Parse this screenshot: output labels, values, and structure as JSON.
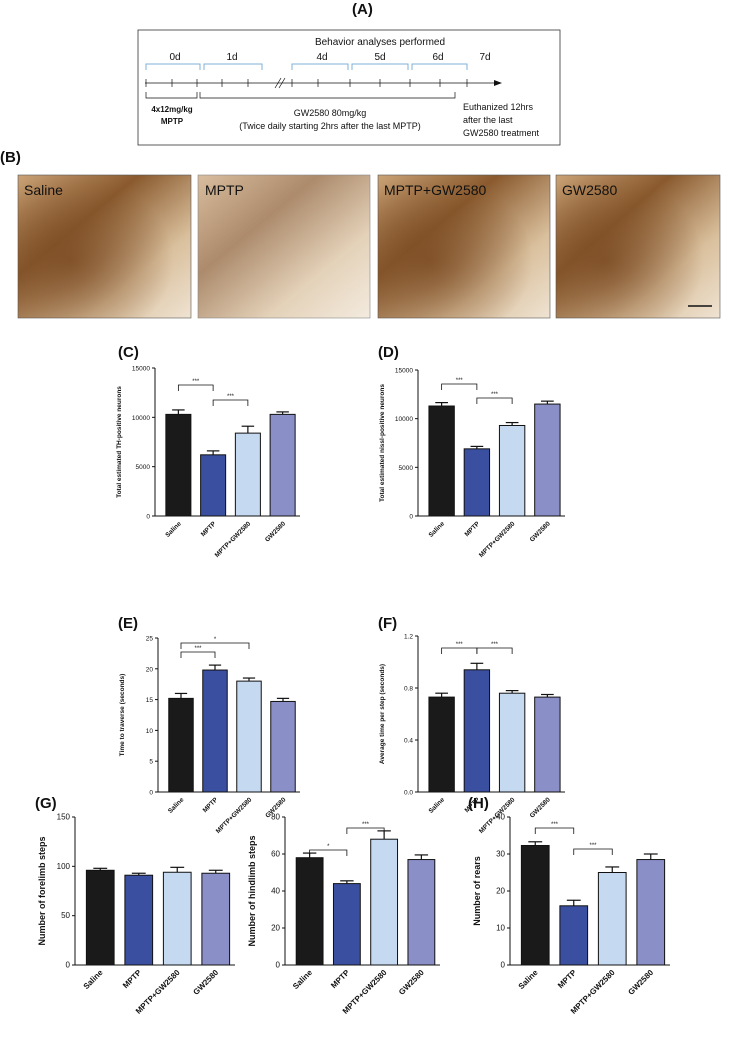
{
  "panel_labels": [
    "(A)",
    "(B)",
    "(C)",
    "(D)",
    "(E)",
    "(F)",
    "(G)",
    "(H)"
  ],
  "timeline": {
    "heading": "Behavior analyses performed",
    "days": [
      "0d",
      "1d",
      "4d",
      "5d",
      "6d",
      "7d"
    ],
    "mptp_dose": [
      "4x12mg/kg",
      "MPTP"
    ],
    "treatment": [
      "GW2580 80mg/kg",
      "(Twice daily starting 2hrs after the last MPTP)"
    ],
    "endpoint": [
      "Euthanized  12hrs",
      "after the last",
      "GW2580 treatment"
    ]
  },
  "micrographs": {
    "labels": [
      "Saline",
      "MPTP",
      "MPTP+GW2580",
      "GW2580"
    ]
  },
  "chart_data": [
    {
      "type": "bar",
      "categories": [
        "Saline",
        "MPTP",
        "MPTP+GW2580",
        "GW2580"
      ],
      "values": [
        10300,
        6200,
        8400,
        10300
      ],
      "errors": [
        450,
        400,
        700,
        250
      ],
      "colors": [
        "#1a1a1a",
        "#3a4fa0",
        "#c5d9f1",
        "#8b8fc8"
      ],
      "ylim": [
        0,
        15000
      ],
      "yticks": [
        0,
        5000,
        10000,
        15000
      ],
      "ylabel": "Total estimated TH-positive neurons",
      "annotations": [
        "***",
        "***"
      ]
    },
    {
      "type": "bar",
      "categories": [
        "Saline",
        "MPTP",
        "MPTP+GW2580",
        "GW2580"
      ],
      "values": [
        11300,
        6900,
        9300,
        11500
      ],
      "errors": [
        350,
        250,
        300,
        300
      ],
      "colors": [
        "#1a1a1a",
        "#3a4fa0",
        "#c5d9f1",
        "#8b8fc8"
      ],
      "ylim": [
        0,
        15000
      ],
      "yticks": [
        0,
        5000,
        10000,
        15000
      ],
      "ylabel": "Total estimated nissl-positive neurons",
      "annotations": [
        "***",
        "***"
      ]
    },
    {
      "type": "bar",
      "categories": [
        "Saline",
        "MPTP",
        "MPTP+GW2580",
        "GW2580"
      ],
      "values": [
        15.2,
        19.8,
        18.0,
        14.7
      ],
      "errors": [
        0.8,
        0.8,
        0.5,
        0.5
      ],
      "colors": [
        "#1a1a1a",
        "#3a4fa0",
        "#c5d9f1",
        "#8b8fc8"
      ],
      "ylim": [
        0,
        25
      ],
      "yticks": [
        0,
        5,
        10,
        15,
        20,
        25
      ],
      "ylabel": "Time to traverse (seconds)",
      "annotations": [
        "*",
        "***"
      ]
    },
    {
      "type": "bar",
      "categories": [
        "Saline",
        "MPTP",
        "MPTP+GW2580",
        "GW2580"
      ],
      "values": [
        0.73,
        0.94,
        0.76,
        0.73
      ],
      "errors": [
        0.03,
        0.05,
        0.02,
        0.02
      ],
      "colors": [
        "#1a1a1a",
        "#3a4fa0",
        "#c5d9f1",
        "#8b8fc8"
      ],
      "ylim": [
        0,
        1.2
      ],
      "yticks": [
        {
          "value": 0,
          "label": "0.0"
        },
        0.4,
        0.8,
        1.2
      ],
      "ylabel": "Average time per step (seconds)",
      "annotations": [
        "***",
        "***"
      ]
    },
    {
      "type": "bar",
      "categories": [
        "Saline",
        "MPTP",
        "MPTP+GW2580",
        "GW2580"
      ],
      "values": [
        96,
        91,
        94,
        93
      ],
      "errors": [
        2,
        2,
        5,
        3
      ],
      "colors": [
        "#1a1a1a",
        "#3a4fa0",
        "#c5d9f1",
        "#8b8fc8"
      ],
      "ylim": [
        0,
        150
      ],
      "yticks": [
        0,
        50,
        100,
        150
      ],
      "ylabel": "Number of forelimb steps",
      "annotations": []
    },
    {
      "type": "bar",
      "categories": [
        "Saline",
        "MPTP",
        "MPTP+GW2580",
        "GW2580"
      ],
      "values": [
        58,
        44,
        68,
        57
      ],
      "errors": [
        2.5,
        1.5,
        4.5,
        2.5
      ],
      "colors": [
        "#1a1a1a",
        "#3a4fa0",
        "#c5d9f1",
        "#8b8fc8"
      ],
      "ylim": [
        0,
        80
      ],
      "yticks": [
        0,
        20,
        40,
        60,
        80
      ],
      "ylabel": "Number of hindlimb steps",
      "annotations": [
        "*",
        "***"
      ]
    },
    {
      "type": "bar",
      "categories": [
        "Saline",
        "MPTP",
        "MPTP+GW2580",
        "GW2580"
      ],
      "values": [
        32.3,
        16,
        25,
        28.5
      ],
      "errors": [
        1,
        1.5,
        1.5,
        1.5
      ],
      "colors": [
        "#1a1a1a",
        "#3a4fa0",
        "#c5d9f1",
        "#8b8fc8"
      ],
      "ylim": [
        0,
        40
      ],
      "yticks": [
        0,
        10,
        20,
        30,
        40
      ],
      "ylabel": "Number of rears",
      "annotations": [
        "***",
        "***"
      ]
    }
  ]
}
